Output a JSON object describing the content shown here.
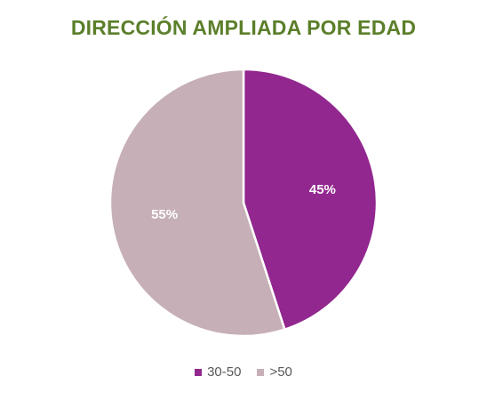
{
  "chart_data": {
    "type": "pie",
    "title": "DIRECCIÓN AMPLIADA POR EDAD",
    "title_color": "#5B7F2A",
    "slices": [
      {
        "label": "30-50",
        "value": 45,
        "display": "45%",
        "color": "#92278F"
      },
      {
        "label": ">50",
        "value": 55,
        "display": "55%",
        "color": "#C6AFB7"
      }
    ],
    "legend_position": "bottom",
    "start_angle": "top",
    "direction": "clockwise"
  }
}
